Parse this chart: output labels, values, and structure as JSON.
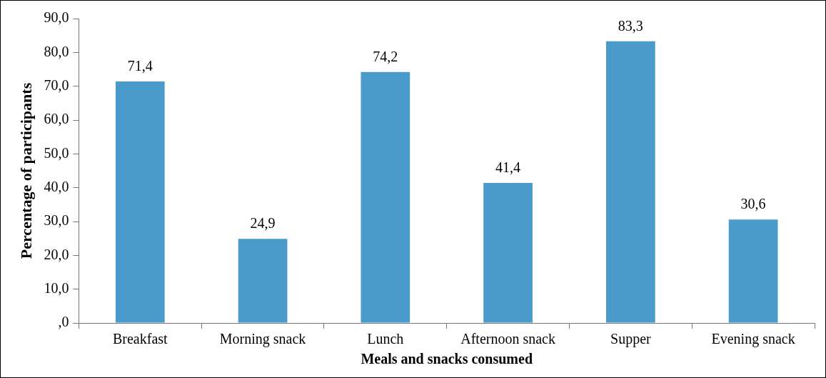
{
  "chart_data": {
    "type": "bar",
    "xlabel": "Meals and snacks consumed",
    "ylabel": "Percentage of participants",
    "categories": [
      "Breakfast",
      "Morning snack",
      "Lunch",
      "Afternoon snack",
      "Supper",
      "Evening snack"
    ],
    "values": [
      71.4,
      24.9,
      74.2,
      41.4,
      83.3,
      30.6
    ],
    "value_labels": [
      "71,4",
      "24,9",
      "74,2",
      "41,4",
      "83,3",
      "30,6"
    ],
    "color": "#4a9bcb",
    "ylim": [
      0,
      90
    ],
    "yticks": [
      {
        "value": 0,
        "label": ",0"
      },
      {
        "value": 10,
        "label": "10,0"
      },
      {
        "value": 20,
        "label": "20,0"
      },
      {
        "value": 30,
        "label": "30,0"
      },
      {
        "value": 40,
        "label": "40,0"
      },
      {
        "value": 50,
        "label": "50,0"
      },
      {
        "value": 60,
        "label": "60,0"
      },
      {
        "value": 70,
        "label": "70,0"
      },
      {
        "value": 80,
        "label": "80,0"
      },
      {
        "value": 90,
        "label": "90,0"
      }
    ],
    "grid": false,
    "legend": false
  }
}
